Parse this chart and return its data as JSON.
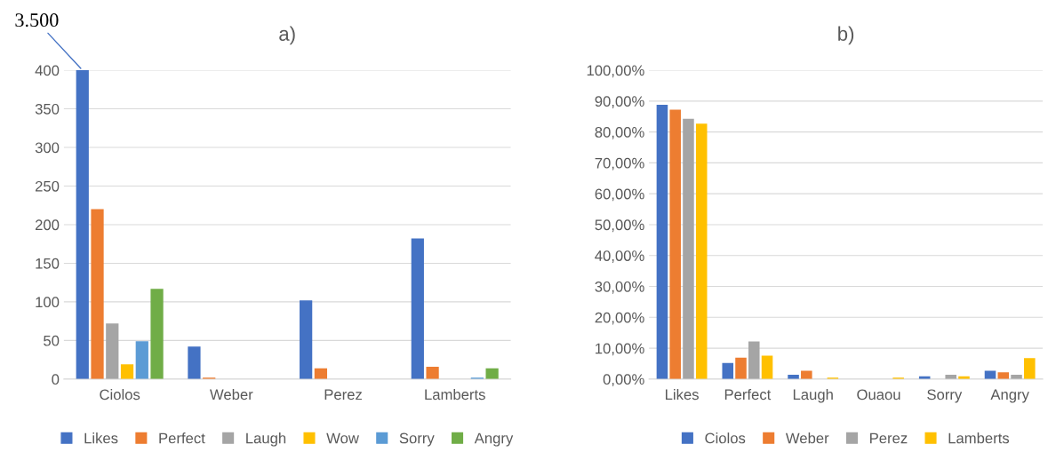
{
  "chart_data": [
    {
      "type": "bar",
      "title": "a)",
      "categories": [
        "Ciolos",
        "Weber",
        "Perez",
        "Lamberts"
      ],
      "series": [
        {
          "name": "Likes",
          "color": "#4472c4",
          "values": [
            400,
            42,
            102,
            182
          ]
        },
        {
          "name": "Perfect",
          "color": "#ed7d31",
          "values": [
            220,
            2,
            14,
            16
          ]
        },
        {
          "name": "Laugh",
          "color": "#a5a5a5",
          "values": [
            72,
            0,
            0,
            0
          ]
        },
        {
          "name": "Wow",
          "color": "#ffc000",
          "values": [
            19,
            0,
            0,
            0
          ]
        },
        {
          "name": "Sorry",
          "color": "#5b9bd5",
          "values": [
            49,
            0,
            0,
            2
          ]
        },
        {
          "name": "Angry",
          "color": "#70ad47",
          "values": [
            117,
            0,
            0,
            14
          ]
        }
      ],
      "ylim": [
        0,
        400
      ],
      "yticks": [
        0,
        50,
        100,
        150,
        200,
        250,
        300,
        350,
        400
      ],
      "grid": "y",
      "legend": "bottom",
      "annotations": [
        "3.500"
      ]
    },
    {
      "type": "bar",
      "title": "b)",
      "categories": [
        "Likes",
        "Perfect",
        "Laugh",
        "Ouaou",
        "Sorry",
        "Angry"
      ],
      "series": [
        {
          "name": "Ciolos",
          "color": "#4472c4",
          "values": [
            88.8,
            5.2,
            1.4,
            0,
            0.9,
            2.7
          ]
        },
        {
          "name": "Weber",
          "color": "#ed7d31",
          "values": [
            87.2,
            6.9,
            2.7,
            0,
            0,
            2.2
          ]
        },
        {
          "name": "Perez",
          "color": "#a5a5a5",
          "values": [
            84.3,
            12.2,
            0,
            0,
            1.4,
            1.4
          ]
        },
        {
          "name": "Lamberts",
          "color": "#ffc000",
          "values": [
            82.7,
            7.6,
            0.5,
            0.5,
            0.9,
            6.8
          ]
        }
      ],
      "ylim": [
        0,
        100
      ],
      "yticks": [
        {
          "value": 0,
          "label": "0,00%"
        },
        {
          "value": 10,
          "label": "10,00%"
        },
        {
          "value": 20,
          "label": "20,00%"
        },
        {
          "value": 30,
          "label": "30,00%"
        },
        {
          "value": 40,
          "label": "40,00%"
        },
        {
          "value": 50,
          "label": "50,00%"
        },
        {
          "value": 60,
          "label": "60,00%"
        },
        {
          "value": 70,
          "label": "70,00%"
        },
        {
          "value": 80,
          "label": "80,00%"
        },
        {
          "value": 90,
          "label": "90,00%"
        },
        {
          "value": 100,
          "label": "100,00%"
        }
      ],
      "grid": "y",
      "legend": "bottom"
    }
  ]
}
